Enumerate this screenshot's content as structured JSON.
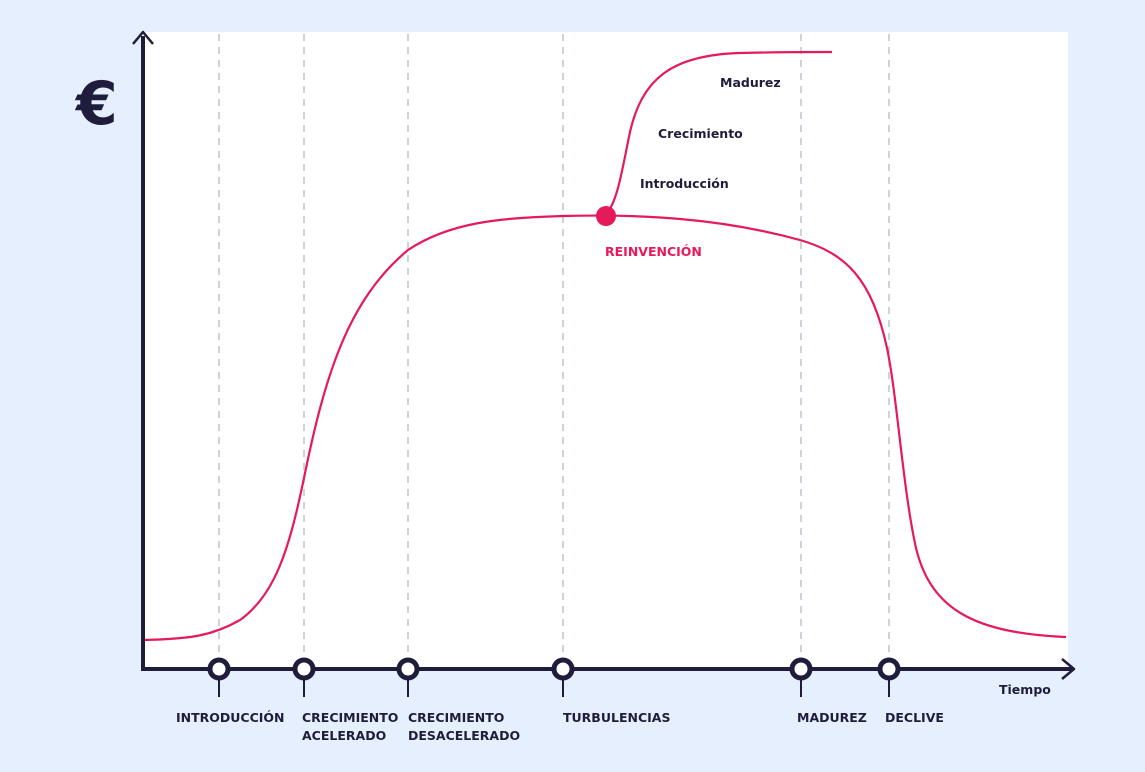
{
  "y_axis_symbol": "€",
  "x_axis_label": "Tiempo",
  "colors": {
    "background": "#e5effd",
    "plot_area": "#ffffff",
    "axis": "#1f1d3b",
    "curve": "#e6195a",
    "gridline": "#b5c0cc",
    "text": "#1f1d3b"
  },
  "phases": [
    {
      "lines": [
        "INTRODUCCIÓN"
      ]
    },
    {
      "lines": [
        "CRECIMIENTO",
        "ACELERADO"
      ]
    },
    {
      "lines": [
        "CRECIMIENTO",
        "DESACELERADO"
      ]
    },
    {
      "lines": [
        "TURBULENCIAS"
      ]
    },
    {
      "lines": [
        "MADUREZ"
      ]
    },
    {
      "lines": [
        "DECLIVE"
      ]
    }
  ],
  "reinvention": {
    "label": "REINVENCIÓN",
    "sub_labels": [
      "Introducción",
      "Crecimiento",
      "Madurez"
    ]
  },
  "icons": [
    "y-axis-arrow-icon",
    "x-axis-arrow-icon",
    "milestone-marker-icon"
  ]
}
